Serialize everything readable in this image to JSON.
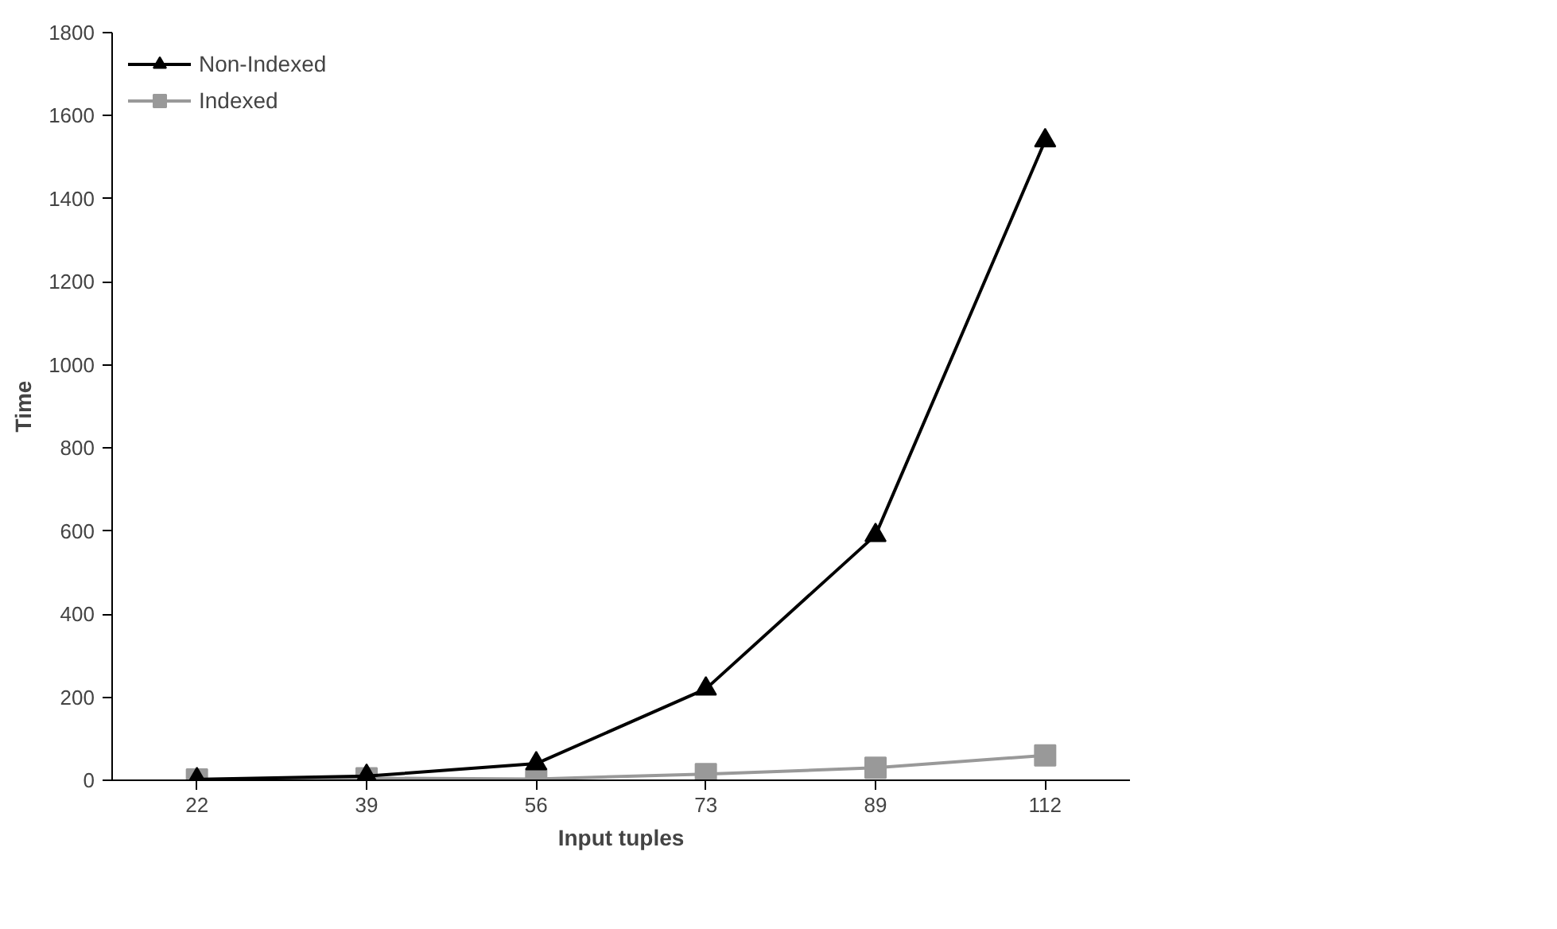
{
  "chart_data": {
    "type": "line",
    "xlabel": "Input tuples",
    "ylabel": "Time",
    "categories": [
      "22",
      "39",
      "56",
      "73",
      "89",
      "112"
    ],
    "series": [
      {
        "name": "Non-Indexed",
        "color": "#000000",
        "marker": "triangle",
        "values": [
          2,
          10,
          40,
          220,
          590,
          1540
        ]
      },
      {
        "name": "Indexed",
        "color": "#999999",
        "marker": "square",
        "values": [
          2,
          5,
          3,
          15,
          30,
          60
        ]
      }
    ],
    "ylim": [
      0,
      1800
    ],
    "yticks": [
      0,
      200,
      400,
      600,
      800,
      1000,
      1200,
      1400,
      1600,
      1800
    ],
    "grid": false,
    "legend": "top left"
  }
}
